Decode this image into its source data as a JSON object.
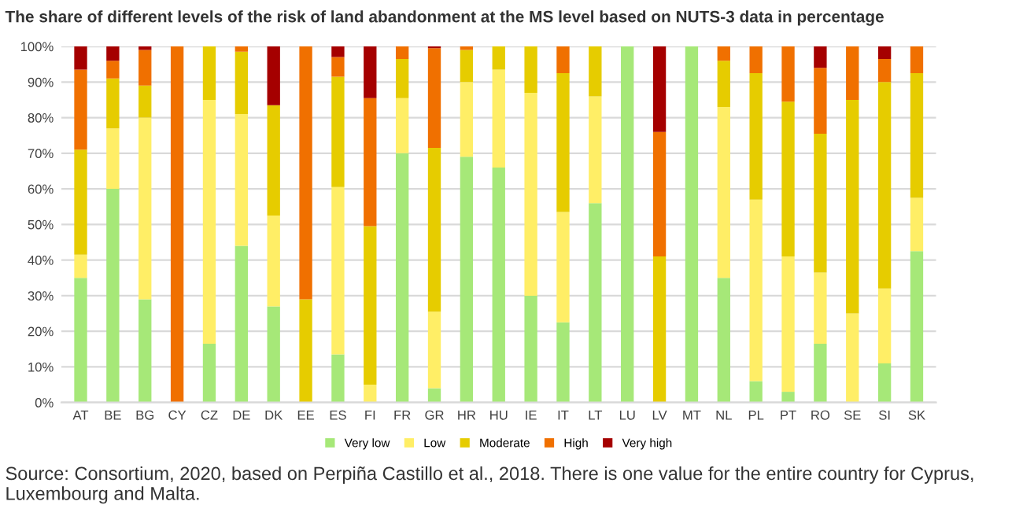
{
  "chart_data": {
    "type": "bar",
    "stacked": true,
    "title": "The share of different levels of the risk of land abandonment at the MS level based on NUTS-3 data in percentage",
    "categories": [
      "AT",
      "BE",
      "BG",
      "CY",
      "CZ",
      "DE",
      "DK",
      "EE",
      "ES",
      "FI",
      "FR",
      "GR",
      "HR",
      "HU",
      "IE",
      "IT",
      "LT",
      "LU",
      "LV",
      "MT",
      "NL",
      "PL",
      "PT",
      "RO",
      "SE",
      "SI",
      "SK"
    ],
    "series": [
      {
        "name": "Very low",
        "color": "#a6e878",
        "values": [
          35,
          60,
          29,
          0,
          16.5,
          44,
          27,
          0,
          13.5,
          0,
          70,
          4,
          69,
          66,
          30,
          22.5,
          56,
          100,
          0,
          100,
          35,
          6,
          3,
          16.5,
          0,
          11,
          42.5
        ]
      },
      {
        "name": "Low",
        "color": "#ffee66",
        "values": [
          6.5,
          17,
          51,
          0,
          68.5,
          37,
          25.5,
          0,
          47,
          5,
          15.5,
          21.5,
          21,
          27.5,
          57,
          31,
          30,
          0,
          0,
          0,
          48,
          51,
          38,
          20,
          25,
          21,
          15
        ]
      },
      {
        "name": "Moderate",
        "color": "#e6cc00",
        "values": [
          29.5,
          14,
          9,
          0,
          15,
          17.5,
          31,
          29,
          31,
          44.5,
          11,
          46,
          9,
          6.5,
          13,
          39,
          14,
          0,
          41,
          0,
          13,
          35.5,
          43.5,
          39,
          60,
          58,
          35
        ]
      },
      {
        "name": "High",
        "color": "#f07000",
        "values": [
          22.5,
          5,
          10,
          100,
          0,
          1.5,
          0,
          71,
          5.5,
          36,
          3.5,
          28,
          1,
          0,
          0,
          7.5,
          0,
          0,
          35,
          0,
          4,
          7.5,
          15.5,
          18.5,
          15,
          6.5,
          7.5
        ]
      },
      {
        "name": "Very high",
        "color": "#a50000",
        "values": [
          6.5,
          4,
          1,
          0,
          0,
          0,
          16.5,
          0,
          3,
          14.5,
          0,
          0.5,
          0,
          0,
          0,
          0,
          0,
          0,
          24,
          0,
          0,
          0,
          0,
          6,
          0,
          3.5,
          0
        ]
      }
    ],
    "ylim": [
      0,
      100
    ],
    "yticks": [
      {
        "value": 0,
        "label": "0%"
      },
      {
        "value": 10,
        "label": "10%"
      },
      {
        "value": 20,
        "label": "20%"
      },
      {
        "value": 30,
        "label": "30%"
      },
      {
        "value": 40,
        "label": "40%"
      },
      {
        "value": 50,
        "label": "50%"
      },
      {
        "value": 60,
        "label": "60%"
      },
      {
        "value": 70,
        "label": "70%"
      },
      {
        "value": 80,
        "label": "80%"
      },
      {
        "value": 90,
        "label": "90%"
      },
      {
        "value": 100,
        "label": "100%"
      }
    ],
    "grid": "y",
    "legend": "bottom",
    "annotations": [
      "Source: Consortium, 2020, based on Perpiña Castillo et al., 2018. There is one value for the entire country for Cyprus, Luxembourg and Malta."
    ]
  }
}
